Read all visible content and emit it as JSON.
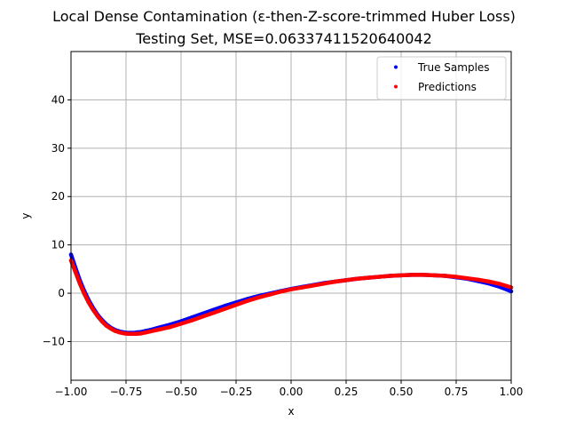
{
  "chart_data": {
    "type": "scatter",
    "title": "Local Dense Contamination (ε-then-Z-score-trimmed Huber Loss)",
    "subtitle": "Testing Set, MSE=0.06337411520640042",
    "xlabel": "x",
    "ylabel": "y",
    "xlim": [
      -1.0,
      1.0
    ],
    "ylim": [
      -18,
      50
    ],
    "xticks": [
      -1.0,
      -0.75,
      -0.5,
      -0.25,
      0.0,
      0.25,
      0.5,
      0.75,
      1.0
    ],
    "xtick_labels": [
      "−1.00",
      "−0.75",
      "−0.50",
      "−0.25",
      "0.00",
      "0.25",
      "0.50",
      "0.75",
      "1.00"
    ],
    "yticks": [
      -10,
      0,
      10,
      20,
      30,
      40
    ],
    "ytick_labels": [
      "−10",
      "0",
      "10",
      "20",
      "30",
      "40"
    ],
    "grid": true,
    "legend_position": "top-right",
    "series": [
      {
        "name": "True Samples",
        "color": "#0000ff",
        "x": [
          -1.0,
          -0.98,
          -0.96,
          -0.94,
          -0.92,
          -0.9,
          -0.88,
          -0.86,
          -0.84,
          -0.82,
          -0.8,
          -0.78,
          -0.76,
          -0.74,
          -0.72,
          -0.7,
          -0.68,
          -0.66,
          -0.64,
          -0.6,
          -0.55,
          -0.5,
          -0.45,
          -0.4,
          -0.35,
          -0.3,
          -0.25,
          -0.2,
          -0.15,
          -0.1,
          -0.05,
          0.0,
          0.05,
          0.1,
          0.15,
          0.2,
          0.25,
          0.3,
          0.35,
          0.4,
          0.45,
          0.5,
          0.55,
          0.6,
          0.65,
          0.7,
          0.75,
          0.8,
          0.85,
          0.9,
          0.95,
          1.0
        ],
        "y": [
          8.0,
          5.3,
          2.7,
          0.5,
          -1.4,
          -3.0,
          -4.4,
          -5.5,
          -6.4,
          -7.1,
          -7.6,
          -7.9,
          -8.1,
          -8.2,
          -8.2,
          -8.1,
          -8.0,
          -7.8,
          -7.6,
          -7.1,
          -6.5,
          -5.8,
          -5.0,
          -4.2,
          -3.4,
          -2.6,
          -1.9,
          -1.2,
          -0.6,
          -0.1,
          0.4,
          0.9,
          1.3,
          1.7,
          2.1,
          2.4,
          2.7,
          3.0,
          3.2,
          3.4,
          3.6,
          3.7,
          3.8,
          3.8,
          3.7,
          3.6,
          3.3,
          3.0,
          2.5,
          2.0,
          1.3,
          0.4
        ]
      },
      {
        "name": "Predictions",
        "color": "#ff0000",
        "x": [
          -1.0,
          -0.98,
          -0.96,
          -0.94,
          -0.92,
          -0.9,
          -0.88,
          -0.86,
          -0.84,
          -0.82,
          -0.8,
          -0.78,
          -0.76,
          -0.74,
          -0.72,
          -0.7,
          -0.68,
          -0.66,
          -0.64,
          -0.6,
          -0.55,
          -0.5,
          -0.45,
          -0.4,
          -0.35,
          -0.3,
          -0.25,
          -0.2,
          -0.15,
          -0.1,
          -0.05,
          0.0,
          0.05,
          0.1,
          0.15,
          0.2,
          0.25,
          0.3,
          0.35,
          0.4,
          0.45,
          0.5,
          0.55,
          0.6,
          0.65,
          0.7,
          0.75,
          0.8,
          0.85,
          0.9,
          0.95,
          1.0
        ],
        "y": [
          6.8,
          4.4,
          2.0,
          -0.1,
          -1.9,
          -3.4,
          -4.7,
          -5.8,
          -6.7,
          -7.3,
          -7.8,
          -8.1,
          -8.3,
          -8.4,
          -8.4,
          -8.4,
          -8.3,
          -8.1,
          -7.9,
          -7.5,
          -7.0,
          -6.3,
          -5.6,
          -4.8,
          -4.0,
          -3.2,
          -2.4,
          -1.6,
          -0.9,
          -0.3,
          0.3,
          0.8,
          1.2,
          1.6,
          2.0,
          2.4,
          2.7,
          3.0,
          3.2,
          3.4,
          3.6,
          3.7,
          3.8,
          3.8,
          3.7,
          3.6,
          3.4,
          3.1,
          2.8,
          2.4,
          1.9,
          1.2
        ]
      }
    ]
  }
}
